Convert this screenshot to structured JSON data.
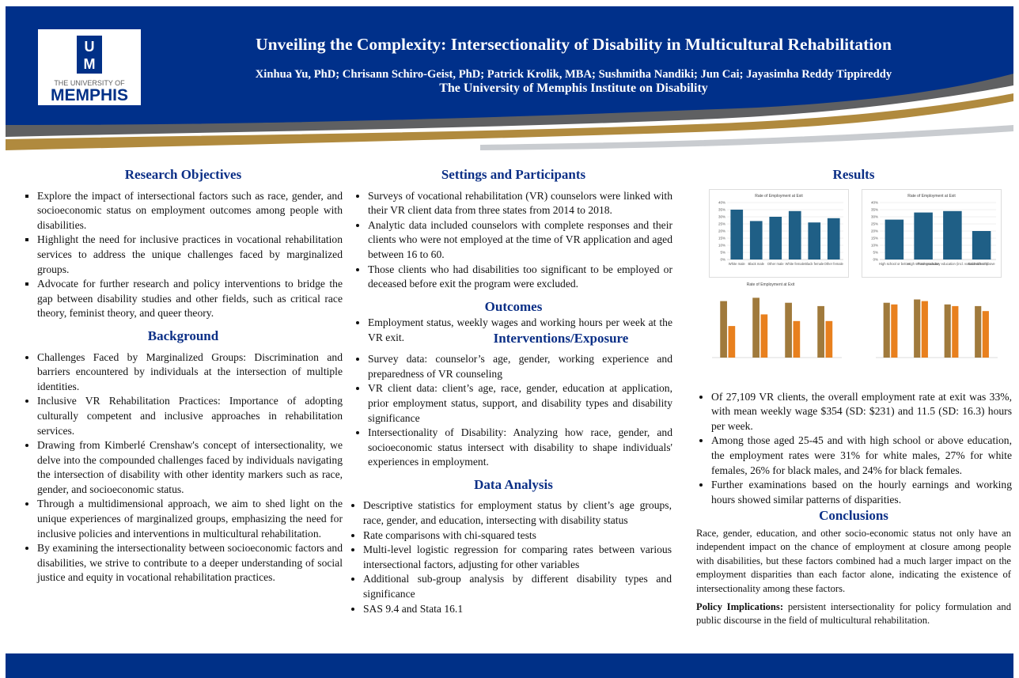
{
  "header": {
    "logo_line1": "THE UNIVERSITY OF",
    "logo_line2": "MEMPHIS",
    "title": "Unveiling the Complexity: Intersectionality of Disability in Multicultural Rehabilitation",
    "authors": "Xinhua Yu, PhD; Chrisann Schiro-Geist, PhD; Patrick Krolik, MBA; Sushmitha Nandiki; Jun Cai; Jayasimha Reddy Tippireddy",
    "affiliation": "The University of Memphis Institute on Disability"
  },
  "research_objectives": {
    "heading": "Research Objectives",
    "items": [
      "Explore the impact of intersectional factors such as race, gender, and socioeconomic status on employment outcomes among people with disabilities.",
      "Highlight the need for inclusive practices in vocational rehabilitation services to address the unique challenges faced by marginalized groups.",
      "Advocate for further research and policy interventions to bridge the gap between disability studies and other fields, such as critical race theory, feminist theory, and queer theory."
    ]
  },
  "background": {
    "heading": "Background",
    "items": [
      "Challenges Faced by Marginalized Groups: Discrimination and barriers encountered by individuals at the intersection of multiple identities.",
      "Inclusive VR Rehabilitation Practices: Importance of adopting culturally competent and inclusive approaches in rehabilitation services.",
      "Drawing from Kimberlé Crenshaw's concept of intersectionality, we delve into the compounded challenges faced by individuals navigating the intersection of disability with other identity markers such as race, gender, and socioeconomic status.",
      "Through a multidimensional approach, we aim to shed light on the unique experiences of marginalized groups, emphasizing the need for inclusive policies and interventions in multicultural rehabilitation.",
      "By examining the intersectionality between socioeconomic factors and disabilities, we strive to contribute to a deeper understanding of social justice and equity in vocational rehabilitation practices."
    ]
  },
  "settings": {
    "heading": "Settings and Participants",
    "items": [
      "Surveys of vocational rehabilitation (VR) counselors were linked with their VR client data from three states from 2014 to 2018.",
      "Analytic data included counselors with complete responses and their clients who were not employed at the time of VR application and aged between 16 to 60.",
      "Those clients who had disabilities too significant to be employed or deceased before exit the program were excluded."
    ]
  },
  "outcomes": {
    "heading": "Outcomes",
    "items": [
      "Employment status, weekly wages and working hours per week at the VR exit."
    ]
  },
  "interventions": {
    "heading": "Interventions/Exposure",
    "items": [
      "Survey data: counselor’s age, gender, working experience and preparedness of VR counseling",
      "VR client data: client’s age, race, gender, education at application, prior employment status, support, and disability types and disability significance",
      "Intersectionality of Disability: Analyzing how race, gender, and socioeconomic status intersect with disability to shape individuals' experiences in employment."
    ]
  },
  "data_analysis": {
    "heading": "Data Analysis",
    "items": [
      "Descriptive statistics for employment status by client’s age groups, race, gender, and education, intersecting with disability status",
      "Rate comparisons with chi-squared tests",
      "Multi-level logistic regression for comparing rates between various intersectional factors, adjusting for other variables",
      "Additional sub-group analysis by different disability types and significance",
      "SAS 9.4 and Stata 16.1"
    ]
  },
  "results": {
    "heading": "Results",
    "charts": [
      {
        "type": "bar",
        "title": "Rate of Employment at Exit",
        "categories": [
          "White male",
          "Black male",
          "Other male",
          "White female",
          "Black female",
          "Other female"
        ],
        "values": [
          35,
          27,
          30,
          34,
          26,
          29
        ],
        "color": "#1f5f86",
        "ylim": [
          0,
          40
        ],
        "yticks": [
          {
            "value": 0,
            "label": "0%"
          },
          {
            "value": 5,
            "label": "5%"
          },
          {
            "value": 10,
            "label": "10%"
          },
          {
            "value": 15,
            "label": "15%"
          },
          {
            "value": 20,
            "label": "20%"
          },
          {
            "value": 25,
            "label": "25%"
          },
          {
            "value": 30,
            "label": "30%"
          },
          {
            "value": 35,
            "label": "35%"
          },
          {
            "value": 40,
            "label": "40%"
          }
        ]
      },
      {
        "type": "bar",
        "title": "Rate of Employment at Exit",
        "categories": [
          "High school or below",
          "High school graduate",
          "Post-secondary education (incl. vocational/tech)",
          "Bachelor or above"
        ],
        "values": [
          28,
          33,
          34,
          20
        ],
        "color": "#1f5f86",
        "ylim": [
          0,
          40
        ],
        "yticks": [
          {
            "value": 0,
            "label": "0%"
          },
          {
            "value": 5,
            "label": "5%"
          },
          {
            "value": 10,
            "label": "10%"
          },
          {
            "value": 15,
            "label": "15%"
          },
          {
            "value": 20,
            "label": "20%"
          },
          {
            "value": 25,
            "label": "25%"
          },
          {
            "value": 30,
            "label": "30%"
          },
          {
            "value": 35,
            "label": "35%"
          },
          {
            "value": 40,
            "label": "40%"
          }
        ]
      },
      {
        "type": "bar",
        "title": "Rate of Employment at Exit",
        "categories": [
          null,
          null,
          null,
          null
        ],
        "series": [
          {
            "color": "#a07a3c",
            "values": [
              34,
              36,
              33,
              31
            ]
          },
          {
            "color": "#e8801e",
            "values": [
              19,
              26,
              22,
              22
            ]
          }
        ],
        "ylim": [
          0,
          40
        ]
      },
      {
        "type": "bar",
        "categories": [
          null,
          null,
          null,
          null
        ],
        "series": [
          {
            "color": "#a07a3c",
            "values": [
              33,
              35,
              32,
              31
            ]
          },
          {
            "color": "#e8801e",
            "values": [
              32,
              34,
              31,
              28
            ]
          }
        ],
        "ylim": [
          0,
          40
        ]
      }
    ],
    "items": [
      "Of 27,109 VR clients, the overall employment rate at exit was 33%, with mean weekly wage $354 (SD: $231) and 11.5 (SD: 16.3)  hours per week.",
      "Among those aged 25-45 and with high school or above education, the employment rates were 31% for white males, 27% for white females, 26% for black males, and 24% for black females.",
      "Further examinations based on the hourly earnings and working hours showed similar patterns of disparities."
    ]
  },
  "conclusions": {
    "heading": "Conclusions",
    "paragraph": "Race, gender, education, and other socio-economic status not only have an independent impact on the chance of employment at closure among people with disabilities, but these factors combined had a much larger impact on the employment disparities than each factor alone, indicating the existence of intersectionality among these factors.",
    "policy_label": "Policy Implications:",
    "policy_text": " persistent intersectionality for policy formulation and public discourse in the field of multicultural rehabilitation."
  }
}
